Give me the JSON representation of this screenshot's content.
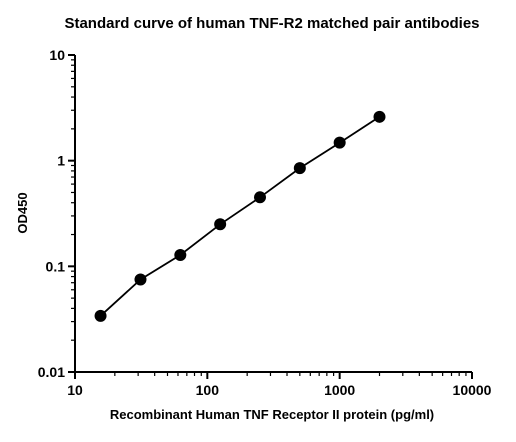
{
  "chart_data": {
    "type": "scatter",
    "title": "Standard curve of human TNF-R2 matched pair antibodies",
    "xlabel": "Recombinant Human TNF Receptor II protein (pg/ml)",
    "ylabel": "OD450",
    "x_scale": "log",
    "y_scale": "log",
    "xlim": [
      10,
      10000
    ],
    "ylim": [
      0.01,
      10
    ],
    "x_ticks": [
      10,
      100,
      1000,
      10000
    ],
    "x_tick_labels": [
      "10",
      "100",
      "1000",
      "10000"
    ],
    "y_ticks": [
      0.01,
      0.1,
      1,
      10
    ],
    "y_tick_labels": [
      "0.01",
      "0.1",
      "1",
      "10"
    ],
    "grid": false,
    "legend": "none",
    "fit_line": true,
    "marker_color": "#000000",
    "line_color": "#000000",
    "series": [
      {
        "x": [
          15.6,
          31.25,
          62.5,
          125,
          250,
          500,
          1000,
          2000
        ],
        "y": [
          0.034,
          0.075,
          0.128,
          0.25,
          0.45,
          0.85,
          1.48,
          2.6
        ]
      }
    ]
  }
}
